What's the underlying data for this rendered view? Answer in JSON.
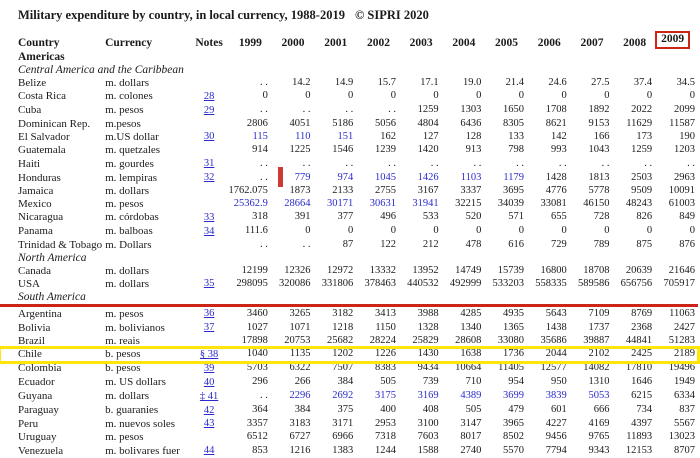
{
  "title": "Military expenditure by country, in local currency, 1988-2019",
  "copyright": "© SIPRI 2020",
  "table": {
    "columns": [
      "Country",
      "Currency",
      "Notes",
      "1999",
      "2000",
      "2001",
      "2002",
      "2003",
      "2004",
      "2005",
      "2006",
      "2007",
      "2008",
      "2009"
    ],
    "sections": [
      {
        "heading": "Americas",
        "style": "bold",
        "rows": []
      },
      {
        "heading": "Central America and the Caribbean",
        "style": "italic",
        "rows": [
          {
            "country": "Belize",
            "currency": "m. dollars",
            "note": "",
            "values": [
              ". .",
              "14.2",
              "14.9",
              "15.7",
              "17.1",
              "19.0",
              "21.4",
              "24.6",
              "27.5",
              "37.4",
              "34.5"
            ],
            "blue": []
          },
          {
            "country": "Costa Rica",
            "currency": "m. colones",
            "note": "28",
            "values": [
              "0",
              "0",
              "0",
              "0",
              "0",
              "0",
              "0",
              "0",
              "0",
              "0",
              "0"
            ],
            "blue": []
          },
          {
            "country": "Cuba",
            "currency": "m. pesos",
            "note": "29",
            "values": [
              ". .",
              ". .",
              ". .",
              ". .",
              "1259",
              "1303",
              "1650",
              "1708",
              "1892",
              "2022",
              "2099"
            ],
            "blue": []
          },
          {
            "country": "Dominican Rep.",
            "currency": "m.pesos",
            "note": "",
            "values": [
              "2806",
              "4051",
              "5186",
              "5056",
              "4804",
              "6436",
              "8305",
              "8621",
              "9153",
              "11629",
              "11587"
            ],
            "blue": []
          },
          {
            "country": "El Salvador",
            "currency": "m.US dollar",
            "note": "30",
            "values": [
              "115",
              "110",
              "151",
              "162",
              "127",
              "128",
              "133",
              "142",
              "166",
              "173",
              "190"
            ],
            "blue": [
              0,
              1,
              2
            ]
          },
          {
            "country": "Guatemala",
            "currency": "m. quetzales",
            "note": "",
            "values": [
              "914",
              "1225",
              "1546",
              "1239",
              "1420",
              "913",
              "798",
              "993",
              "1043",
              "1259",
              "1203"
            ],
            "blue": []
          },
          {
            "country": "Haiti",
            "currency": "m. gourdes",
            "note": "31",
            "values": [
              ". .",
              ". .",
              ". .",
              ". .",
              ". .",
              ". .",
              ". .",
              ". .",
              ". .",
              ". .",
              ". ."
            ],
            "blue": []
          },
          {
            "country": "Honduras",
            "currency": "m. lempiras",
            "note": "32",
            "values": [
              ". .",
              "779",
              "974",
              "1045",
              "1426",
              "1103",
              "1179",
              "1428",
              "1813",
              "2503",
              "2963"
            ],
            "blue": [
              1,
              2,
              3,
              4,
              5,
              6
            ]
          },
          {
            "country": "Jamaica",
            "currency": "m. dollars",
            "note": "",
            "values": [
              "1762.075",
              "1873",
              "2133",
              "2755",
              "3167",
              "3337",
              "3695",
              "4776",
              "5778",
              "9509",
              "10091"
            ],
            "blue": []
          },
          {
            "country": "Mexico",
            "currency": "m. pesos",
            "note": "",
            "values": [
              "25362.9",
              "28664",
              "30171",
              "30631",
              "31941",
              "32215",
              "34039",
              "33081",
              "46150",
              "48243",
              "61003"
            ],
            "blue": [
              0,
              1,
              2,
              3,
              4
            ]
          },
          {
            "country": "Nicaragua",
            "currency": "m. córdobas",
            "note": "33",
            "values": [
              "318",
              "391",
              "377",
              "496",
              "533",
              "520",
              "571",
              "655",
              "728",
              "826",
              "849"
            ],
            "blue": []
          },
          {
            "country": "Panama",
            "currency": "m. balboas",
            "note": "34",
            "values": [
              "111.6",
              "0",
              "0",
              "0",
              "0",
              "0",
              "0",
              "0",
              "0",
              "0",
              "0"
            ],
            "blue": []
          },
          {
            "country": "Trinidad & Tobago",
            "currency": "m. Dollars",
            "note": "",
            "values": [
              ". .",
              ". .",
              "87",
              "122",
              "212",
              "478",
              "616",
              "729",
              "789",
              "875",
              "876"
            ],
            "blue": []
          }
        ]
      },
      {
        "heading": "North America",
        "style": "italic",
        "rows": [
          {
            "country": "Canada",
            "currency": "m. dollars",
            "note": "",
            "values": [
              "12199",
              "12326",
              "12972",
              "13332",
              "13952",
              "14749",
              "15739",
              "16800",
              "18708",
              "20639",
              "21646"
            ],
            "blue": []
          },
          {
            "country": "USA",
            "currency": "m. dollars",
            "note": "35",
            "values": [
              "298095",
              "320086",
              "331806",
              "378463",
              "440532",
              "492999",
              "533203",
              "558335",
              "589586",
              "656756",
              "705917"
            ],
            "blue": []
          }
        ]
      },
      {
        "heading": "South America",
        "style": "italic",
        "underline": "red",
        "rows": [
          {
            "country": "Argentina",
            "currency": "m. pesos",
            "note": "36",
            "values": [
              "3460",
              "3265",
              "3182",
              "3413",
              "3988",
              "4285",
              "4935",
              "5643",
              "7109",
              "8769",
              "11063"
            ],
            "blue": []
          },
          {
            "country": "Bolivia",
            "currency": "m. bolivianos",
            "note": "37",
            "values": [
              "1027",
              "1071",
              "1218",
              "1150",
              "1328",
              "1340",
              "1365",
              "1438",
              "1737",
              "2368",
              "2427"
            ],
            "blue": []
          },
          {
            "country": "Brazil",
            "currency": "m. reais",
            "note": "",
            "values": [
              "17898",
              "20753",
              "25682",
              "28224",
              "25829",
              "28608",
              "33080",
              "35686",
              "39887",
              "44841",
              "51283"
            ],
            "blue": []
          },
          {
            "country": "Chile",
            "currency": "b. pesos",
            "note": "§ 38",
            "values": [
              "1040",
              "1135",
              "1202",
              "1226",
              "1430",
              "1638",
              "1736",
              "2044",
              "2102",
              "2425",
              "2189"
            ],
            "blue": []
          },
          {
            "country": "Colombia",
            "currency": "b. pesos",
            "note": "39",
            "values": [
              "5703",
              "6322",
              "7507",
              "8383",
              "9434",
              "10664",
              "11405",
              "12577",
              "14082",
              "17810",
              "19496"
            ],
            "blue": []
          },
          {
            "country": "Ecuador",
            "currency": "m. US dollars",
            "note": "40",
            "values": [
              "296",
              "266",
              "384",
              "505",
              "739",
              "710",
              "954",
              "950",
              "1310",
              "1646",
              "1949"
            ],
            "blue": []
          },
          {
            "country": "Guyana",
            "currency": "m. dollars",
            "note": "‡ 41",
            "values": [
              ". .",
              "2296",
              "2692",
              "3175",
              "3169",
              "4389",
              "3699",
              "3839",
              "5053",
              "6215",
              "6334"
            ],
            "blue": [
              1,
              2,
              3,
              4,
              5,
              6,
              7,
              8
            ]
          },
          {
            "country": "Paraguay",
            "currency": "b. guaranies",
            "note": "42",
            "values": [
              "364",
              "384",
              "375",
              "400",
              "408",
              "505",
              "479",
              "601",
              "666",
              "734",
              "837"
            ],
            "blue": []
          },
          {
            "country": "Peru",
            "currency": "m. nuevos soles",
            "note": "43",
            "values": [
              "3357",
              "3183",
              "3171",
              "2953",
              "3100",
              "3147",
              "3965",
              "4227",
              "4169",
              "4397",
              "5567"
            ],
            "blue": []
          },
          {
            "country": "Uruguay",
            "currency": "m. pesos",
            "note": "",
            "values": [
              "6512",
              "6727",
              "6966",
              "7318",
              "7603",
              "8017",
              "8502",
              "9456",
              "9765",
              "11893",
              "13023"
            ],
            "blue": []
          },
          {
            "country": "Venezuela",
            "currency": "m. bolivares fuer",
            "note": "44",
            "values": [
              "853",
              "1216",
              "1383",
              "1244",
              "1588",
              "2740",
              "5570",
              "7794",
              "9343",
              "12153",
              "8707"
            ],
            "blue": []
          }
        ]
      }
    ]
  },
  "annotations": {
    "boxed_column": "2009",
    "highlighted_country": "Chile",
    "red_marker": {
      "country": "Honduras",
      "value_index": 1
    },
    "colors": {
      "link_blue": "#2b2bcb",
      "value_blue": "#2b2bcb",
      "annotation_red": "#cd2418",
      "highlight_yellow": "#ffe50a"
    }
  }
}
